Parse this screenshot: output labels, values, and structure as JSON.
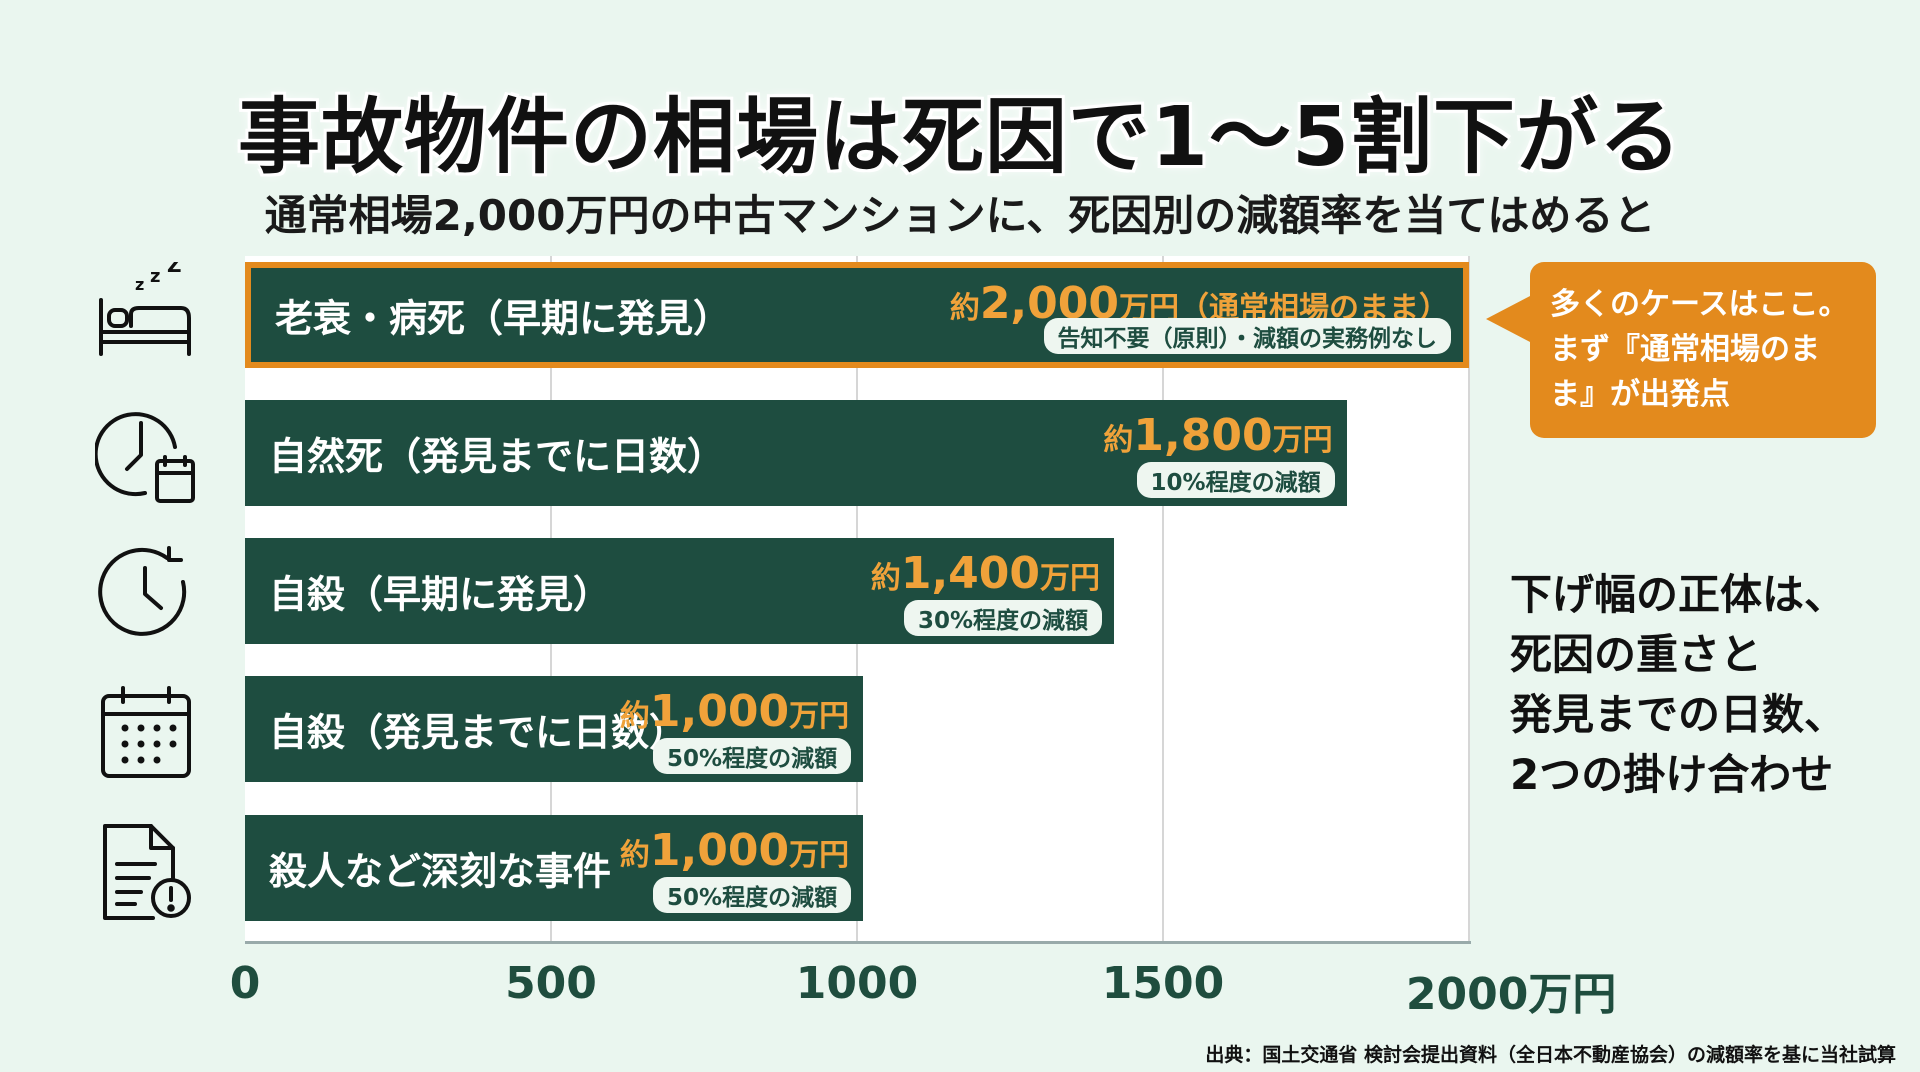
{
  "title": "事故物件の相場は死因で1～5割下がる",
  "subtitle": "通常相場2,000万円の中古マンションに、死因別の減額率を当てはめると",
  "chart_data": {
    "type": "bar",
    "orientation": "horizontal",
    "x_unit": "万円",
    "xlim": [
      0,
      2000
    ],
    "x_ticks": [
      "0",
      "500",
      "1000",
      "1500",
      "2000万円"
    ],
    "grid": true,
    "categories": [
      "老衰・病死（早期に発見）",
      "自然死（発見までに日数）",
      "自殺（早期に発見）",
      "自殺（発見までに日数）",
      "殺人など深刻な事件"
    ],
    "values": [
      2000,
      1800,
      1420,
      1010,
      1010
    ],
    "value_labels": [
      {
        "prefix": "約",
        "amount": "2,000",
        "unit": "万円（通常相場のまま）"
      },
      {
        "prefix": "約",
        "amount": "1,800",
        "unit": "万円"
      },
      {
        "prefix": "約",
        "amount": "1,400",
        "unit": "万円"
      },
      {
        "prefix": "約",
        "amount": "1,000",
        "unit": "万円"
      },
      {
        "prefix": "約",
        "amount": "1,000",
        "unit": "万円"
      }
    ],
    "notes": [
      "告知不要（原則）・減額の実務例なし",
      "10%程度の減額",
      "30%程度の減額",
      "50%程度の減額",
      "50%程度の減額"
    ],
    "highlight_index": 0,
    "icons": [
      "bed-sleep-icon",
      "clock-calendar-icon",
      "clock-rotate-icon",
      "calendar-icon",
      "document-alert-icon"
    ]
  },
  "callout": {
    "lines": [
      "多くのケースはここ。",
      "まず『通常相場のま",
      "ま』が出発点"
    ]
  },
  "side_note": {
    "lines": [
      "下げ幅の正体は、",
      "死因の重さと",
      "発見までの日数、",
      "2つの掛け合わせ"
    ]
  },
  "source": "出典：国土交通省 検討会提出資料（全日本不動産協会）の減額率を基に当社試算",
  "colors": {
    "background": "#eaf6ef",
    "bar": "#1e4d40",
    "accent": "#e38a1d",
    "value_text": "#f0a23a"
  }
}
